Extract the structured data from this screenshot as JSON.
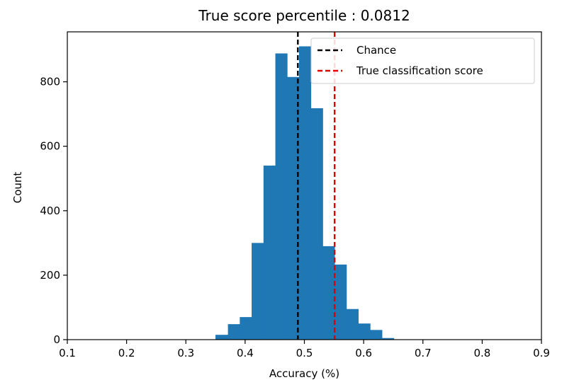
{
  "chart_data": {
    "type": "bar",
    "title": "True score percentile : 0.0812",
    "xlabel": "Accuracy (%)",
    "ylabel": "Count",
    "xlim": [
      0.1,
      0.9
    ],
    "ylim": [
      0,
      955
    ],
    "xticks": [
      0.1,
      0.2,
      0.3,
      0.4,
      0.5,
      0.6,
      0.7,
      0.8,
      0.9
    ],
    "xtick_labels": [
      "0.1",
      "0.2",
      "0.3",
      "0.4",
      "0.5",
      "0.6",
      "0.7",
      "0.8",
      "0.9"
    ],
    "yticks": [
      0,
      200,
      400,
      600,
      800
    ],
    "ytick_labels": [
      "0",
      "200",
      "400",
      "600",
      "800"
    ],
    "bar_color": "#1f77b4",
    "bins": [
      {
        "x0": 0.35,
        "x1": 0.371,
        "count": 15
      },
      {
        "x0": 0.371,
        "x1": 0.391,
        "count": 48
      },
      {
        "x0": 0.391,
        "x1": 0.411,
        "count": 70
      },
      {
        "x0": 0.411,
        "x1": 0.431,
        "count": 300
      },
      {
        "x0": 0.431,
        "x1": 0.451,
        "count": 540
      },
      {
        "x0": 0.451,
        "x1": 0.471,
        "count": 888
      },
      {
        "x0": 0.471,
        "x1": 0.491,
        "count": 815
      },
      {
        "x0": 0.491,
        "x1": 0.511,
        "count": 910
      },
      {
        "x0": 0.511,
        "x1": 0.531,
        "count": 718
      },
      {
        "x0": 0.531,
        "x1": 0.551,
        "count": 290
      },
      {
        "x0": 0.551,
        "x1": 0.571,
        "count": 233
      },
      {
        "x0": 0.571,
        "x1": 0.591,
        "count": 95
      },
      {
        "x0": 0.591,
        "x1": 0.611,
        "count": 50
      },
      {
        "x0": 0.611,
        "x1": 0.631,
        "count": 30
      },
      {
        "x0": 0.631,
        "x1": 0.651,
        "count": 5
      }
    ],
    "vlines": [
      {
        "name": "Chance",
        "x": 0.489,
        "color": "#000000",
        "style": "dashed"
      },
      {
        "name": "True classification score",
        "x": 0.551,
        "color": "#e00000",
        "style": "dashed"
      }
    ],
    "legend": {
      "position": "upper right",
      "entries": [
        "Chance",
        "True classification score"
      ]
    },
    "grid": false
  }
}
